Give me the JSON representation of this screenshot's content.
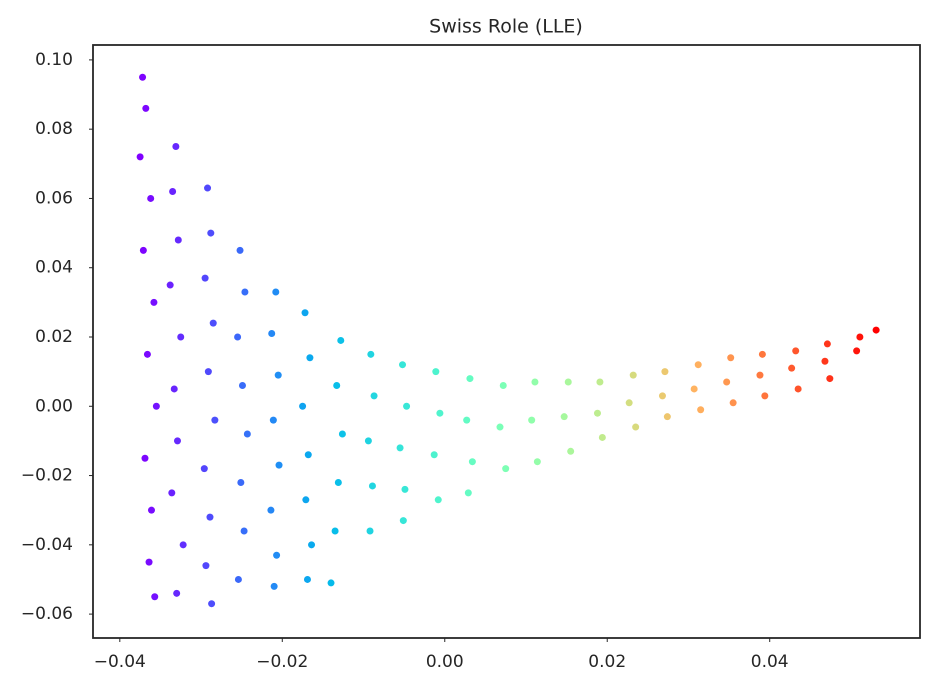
{
  "chart_data": {
    "type": "scatter",
    "title": "Swiss Role (LLE)",
    "colormap": "rainbow",
    "x": [
      -0.0372,
      -0.0368,
      -0.0375,
      -0.0362,
      -0.0371,
      -0.0358,
      -0.0366,
      -0.0355,
      -0.0369,
      -0.0361,
      -0.0364,
      -0.0357,
      -0.0331,
      -0.0335,
      -0.0328,
      -0.0338,
      -0.0325,
      -0.0333,
      -0.0329,
      -0.0336,
      -0.0322,
      -0.033,
      -0.0292,
      -0.0288,
      -0.0295,
      -0.0285,
      -0.0291,
      -0.0283,
      -0.0296,
      -0.0289,
      -0.0294,
      -0.0287,
      -0.0252,
      -0.0246,
      -0.0255,
      -0.0249,
      -0.0243,
      -0.0251,
      -0.0247,
      -0.0254,
      -0.0208,
      -0.0213,
      -0.0205,
      -0.0211,
      -0.0204,
      -0.0214,
      -0.0207,
      -0.021,
      -0.0172,
      -0.0166,
      -0.0175,
      -0.0168,
      -0.0171,
      -0.0164,
      -0.0169,
      -0.0128,
      -0.0133,
      -0.0126,
      -0.0131,
      -0.0135,
      -0.014,
      -0.0091,
      -0.0087,
      -0.0094,
      -0.0089,
      -0.0092,
      -0.0052,
      -0.0047,
      -0.0055,
      -0.0049,
      -0.0051,
      -0.0011,
      -0.0006,
      -0.0013,
      -0.0008,
      0.0031,
      0.0027,
      0.0034,
      0.0029,
      0.0072,
      0.0068,
      0.0075,
      0.0111,
      0.0107,
      0.0114,
      0.0152,
      0.0147,
      0.0155,
      0.0191,
      0.0188,
      0.0194,
      0.0232,
      0.0227,
      0.0235,
      0.0271,
      0.0268,
      0.0274,
      0.0312,
      0.0307,
      0.0315,
      0.0352,
      0.0347,
      0.0355,
      0.0391,
      0.0388,
      0.0394,
      0.0432,
      0.0427,
      0.0435,
      0.0471,
      0.0468,
      0.0474,
      0.0511,
      0.0507,
      0.0531
    ],
    "y": [
      0.095,
      0.086,
      0.072,
      0.06,
      0.045,
      0.03,
      0.015,
      0.0,
      -0.015,
      -0.03,
      -0.045,
      -0.055,
      0.075,
      0.062,
      0.048,
      0.035,
      0.02,
      0.005,
      -0.01,
      -0.025,
      -0.04,
      -0.054,
      0.063,
      0.05,
      0.037,
      0.024,
      0.01,
      -0.004,
      -0.018,
      -0.032,
      -0.046,
      -0.057,
      0.045,
      0.033,
      0.02,
      0.006,
      -0.008,
      -0.022,
      -0.036,
      -0.05,
      0.033,
      0.021,
      0.009,
      -0.004,
      -0.017,
      -0.03,
      -0.043,
      -0.052,
      0.027,
      0.014,
      0.0,
      -0.014,
      -0.027,
      -0.04,
      -0.05,
      0.019,
      0.006,
      -0.008,
      -0.022,
      -0.036,
      -0.051,
      0.015,
      0.003,
      -0.01,
      -0.023,
      -0.036,
      0.012,
      0.0,
      -0.012,
      -0.024,
      -0.033,
      0.01,
      -0.002,
      -0.014,
      -0.027,
      0.008,
      -0.004,
      -0.016,
      -0.025,
      0.006,
      -0.006,
      -0.018,
      0.007,
      -0.004,
      -0.016,
      0.007,
      -0.003,
      -0.013,
      0.007,
      -0.002,
      -0.009,
      0.009,
      0.001,
      -0.006,
      0.01,
      0.003,
      -0.003,
      0.012,
      0.005,
      -0.001,
      0.014,
      0.007,
      0.001,
      0.015,
      0.009,
      0.003,
      0.016,
      0.011,
      0.005,
      0.018,
      0.013,
      0.008,
      0.02,
      0.016,
      0.022
    ],
    "xlim": [
      -0.0433,
      0.0585
    ],
    "ylim": [
      -0.0669,
      0.1043
    ],
    "xticks": [
      {
        "value": -0.04,
        "label": "−0.04"
      },
      {
        "value": -0.02,
        "label": "−0.02"
      },
      {
        "value": 0,
        "label": "0.00"
      },
      0.02,
      0.04
    ],
    "yticks": [
      {
        "value": -0.06,
        "label": "−0.06"
      },
      {
        "value": -0.04,
        "label": "−0.04"
      },
      {
        "value": -0.02,
        "label": "−0.02"
      },
      {
        "value": 0,
        "label": "0.00"
      },
      0.02,
      0.04,
      0.06,
      0.08,
      {
        "value": 0.1,
        "label": "0.10"
      }
    ],
    "grid": false
  }
}
